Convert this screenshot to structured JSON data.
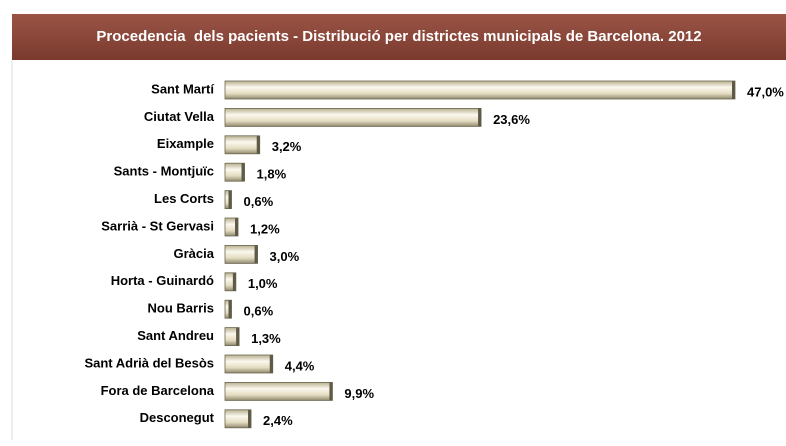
{
  "chart_data": {
    "type": "bar",
    "orientation": "horizontal",
    "title": "Procedencia  dels pacients - Distribució per districtes municipals de Barcelona. 2012",
    "categories": [
      "Sant Martí",
      "Ciutat Vella",
      "Eixample",
      "Sants - Montjuïc",
      "Les Corts",
      "Sarrià - St Gervasi",
      "Gràcia",
      "Horta - Guinardó",
      "Nou Barris",
      "Sant Andreu",
      "Sant Adrià del Besòs",
      "Fora de Barcelona",
      "Desconegut"
    ],
    "values": [
      47.0,
      23.6,
      3.2,
      1.8,
      0.6,
      1.2,
      3.0,
      1.0,
      0.6,
      1.3,
      4.4,
      9.9,
      2.4
    ],
    "value_labels": [
      "47,0%",
      "23,6%",
      "3,2%",
      "1,8%",
      "0,6%",
      "1,2%",
      "3,0%",
      "1,0%",
      "0,6%",
      "1,3%",
      "4,4%",
      "9,9%",
      "2,4%"
    ],
    "color": "#e9e2c9"
  }
}
